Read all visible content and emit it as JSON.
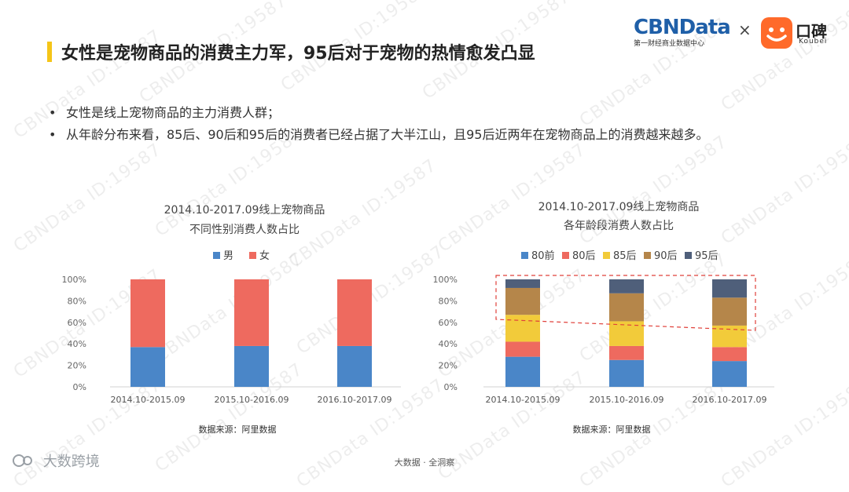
{
  "header": {
    "title": "女性是宠物商品的消费主力军，95后对于宠物的热情愈发凸显",
    "logo_cbn": "CBNData",
    "logo_cbn_sub": "第一财经商业数据中心",
    "logo_x": "×",
    "logo_koubei": "口碑",
    "logo_koubei_en": "Koubei"
  },
  "watermark": "CBNData ID:19587",
  "bullets": [
    {
      "dot": "•",
      "text": "女性是线上宠物商品的主力消费人群；"
    },
    {
      "dot": "•",
      "text": "从年龄分布来看，85后、90后和95后的消费者已经占据了大半江山，且95后近两年在宠物商品上的消费越来越多。"
    }
  ],
  "chart_data": [
    {
      "type": "bar",
      "stacked": true,
      "title": "2014.10-2017.09线上宠物商品\n不同性别消费人数占比",
      "title_lines": [
        "2014.10-2017.09线上宠物商品",
        "不同性别消费人数占比"
      ],
      "categories": [
        "2014.10-2015.09",
        "2015.10-2016.09",
        "2016.10-2017.09"
      ],
      "series": [
        {
          "name": "男",
          "color": "#4a86c8",
          "values": [
            37,
            38,
            38
          ]
        },
        {
          "name": "女",
          "color": "#ee6a5f",
          "values": [
            63,
            62,
            62
          ]
        }
      ],
      "ylim": [
        0,
        100
      ],
      "yticks": [
        "0%",
        "20%",
        "40%",
        "60%",
        "80%",
        "100%"
      ],
      "legend": "top",
      "grid": false,
      "source": "数据来源：阿里数据"
    },
    {
      "type": "bar",
      "stacked": true,
      "title": "2014.10-2017.09线上宠物商品\n各年龄段消费人数占比",
      "title_lines": [
        "2014.10-2017.09线上宠物商品",
        "各年龄段消费人数占比"
      ],
      "categories": [
        "2014.10-2015.09",
        "2015.10-2016.09",
        "2016.10-2017.09"
      ],
      "series": [
        {
          "name": "80前",
          "color": "#4a86c8",
          "values": [
            28,
            25,
            24
          ]
        },
        {
          "name": "80后",
          "color": "#ee6a5f",
          "values": [
            14,
            13,
            13
          ]
        },
        {
          "name": "85后",
          "color": "#f2cb3a",
          "values": [
            25,
            23,
            20
          ]
        },
        {
          "name": "90后",
          "color": "#b5864a",
          "values": [
            25,
            26,
            26
          ]
        },
        {
          "name": "95后",
          "color": "#4f5f7a",
          "values": [
            8,
            13,
            17
          ]
        }
      ],
      "ylim": [
        0,
        100
      ],
      "yticks": [
        "0%",
        "20%",
        "40%",
        "60%",
        "80%",
        "100%"
      ],
      "legend": "top",
      "grid": false,
      "annotation": "dashed-highlight",
      "source": "数据来源：阿里数据"
    }
  ],
  "footer": {
    "left": "大数跨境",
    "center": "大数据 · 全洞察"
  }
}
